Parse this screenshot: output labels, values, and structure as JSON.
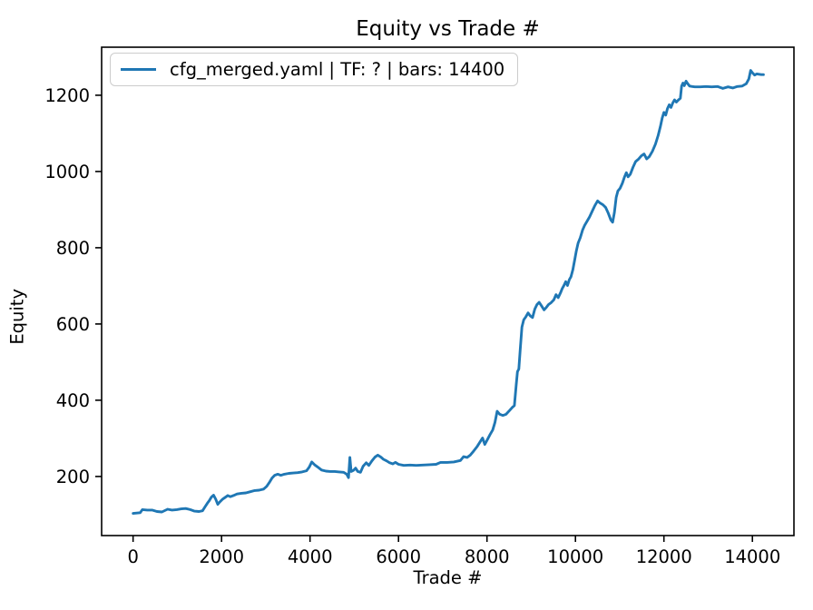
{
  "figure": {
    "title": "Equity vs Trade #"
  },
  "chart_data": {
    "type": "line",
    "title": "Equity vs Trade #",
    "xlabel": "Trade #",
    "ylabel": "Equity",
    "xlim": [
      -711,
      14939
    ],
    "ylim": [
      45,
      1326
    ],
    "xticks": [
      0,
      2000,
      4000,
      6000,
      8000,
      10000,
      12000,
      14000
    ],
    "yticks": [
      200,
      400,
      600,
      800,
      1000,
      1200
    ],
    "grid": false,
    "line_color": "#1f77b4",
    "spine_color": "#000000",
    "legend": {
      "position": "upper left",
      "entries": [
        {
          "label": "cfg_merged.yaml | TF: ? | bars: 14400",
          "color": "#1f77b4"
        }
      ]
    },
    "series": [
      {
        "name": "cfg_merged.yaml | TF: ? | bars: 14400",
        "color": "#1f77b4",
        "points": [
          [
            0,
            103
          ],
          [
            80,
            104
          ],
          [
            160,
            105
          ],
          [
            210,
            113
          ],
          [
            320,
            112
          ],
          [
            430,
            112
          ],
          [
            540,
            108
          ],
          [
            650,
            107
          ],
          [
            780,
            114
          ],
          [
            880,
            112
          ],
          [
            990,
            113
          ],
          [
            1090,
            115
          ],
          [
            1190,
            116
          ],
          [
            1290,
            113
          ],
          [
            1390,
            109
          ],
          [
            1490,
            108
          ],
          [
            1570,
            110
          ],
          [
            1630,
            121
          ],
          [
            1680,
            130
          ],
          [
            1720,
            136
          ],
          [
            1770,
            146
          ],
          [
            1820,
            151
          ],
          [
            1870,
            140
          ],
          [
            1915,
            127
          ],
          [
            1960,
            133
          ],
          [
            2020,
            140
          ],
          [
            2080,
            145
          ],
          [
            2140,
            150
          ],
          [
            2200,
            147
          ],
          [
            2270,
            150
          ],
          [
            2350,
            154
          ],
          [
            2450,
            156
          ],
          [
            2550,
            157
          ],
          [
            2650,
            160
          ],
          [
            2750,
            163
          ],
          [
            2850,
            164
          ],
          [
            2950,
            167
          ],
          [
            3020,
            174
          ],
          [
            3080,
            184
          ],
          [
            3140,
            196
          ],
          [
            3200,
            203
          ],
          [
            3270,
            206
          ],
          [
            3340,
            203
          ],
          [
            3420,
            206
          ],
          [
            3520,
            208
          ],
          [
            3620,
            209
          ],
          [
            3720,
            210
          ],
          [
            3820,
            212
          ],
          [
            3920,
            215
          ],
          [
            3980,
            224
          ],
          [
            4040,
            238
          ],
          [
            4100,
            231
          ],
          [
            4170,
            225
          ],
          [
            4260,
            217
          ],
          [
            4360,
            214
          ],
          [
            4460,
            213
          ],
          [
            4560,
            213
          ],
          [
            4660,
            212
          ],
          [
            4760,
            211
          ],
          [
            4830,
            206
          ],
          [
            4870,
            197
          ],
          [
            4900,
            250
          ],
          [
            4930,
            213
          ],
          [
            4980,
            216
          ],
          [
            5030,
            222
          ],
          [
            5080,
            213
          ],
          [
            5140,
            211
          ],
          [
            5200,
            227
          ],
          [
            5270,
            236
          ],
          [
            5330,
            229
          ],
          [
            5400,
            241
          ],
          [
            5470,
            251
          ],
          [
            5530,
            256
          ],
          [
            5600,
            251
          ],
          [
            5660,
            245
          ],
          [
            5730,
            241
          ],
          [
            5800,
            236
          ],
          [
            5870,
            233
          ],
          [
            5930,
            237
          ],
          [
            6000,
            232
          ],
          [
            6120,
            229
          ],
          [
            6260,
            230
          ],
          [
            6400,
            229
          ],
          [
            6550,
            230
          ],
          [
            6700,
            231
          ],
          [
            6850,
            232
          ],
          [
            6950,
            237
          ],
          [
            7100,
            237
          ],
          [
            7250,
            238
          ],
          [
            7400,
            242
          ],
          [
            7470,
            252
          ],
          [
            7550,
            250
          ],
          [
            7620,
            256
          ],
          [
            7700,
            267
          ],
          [
            7780,
            279
          ],
          [
            7850,
            292
          ],
          [
            7900,
            301
          ],
          [
            7950,
            284
          ],
          [
            8010,
            297
          ],
          [
            8070,
            310
          ],
          [
            8130,
            322
          ],
          [
            8180,
            342
          ],
          [
            8230,
            371
          ],
          [
            8290,
            363
          ],
          [
            8360,
            360
          ],
          [
            8430,
            363
          ],
          [
            8510,
            373
          ],
          [
            8570,
            381
          ],
          [
            8620,
            386
          ],
          [
            8660,
            440
          ],
          [
            8690,
            475
          ],
          [
            8720,
            482
          ],
          [
            8750,
            532
          ],
          [
            8790,
            592
          ],
          [
            8830,
            611
          ],
          [
            8880,
            619
          ],
          [
            8930,
            629
          ],
          [
            8980,
            621
          ],
          [
            9030,
            617
          ],
          [
            9080,
            639
          ],
          [
            9130,
            651
          ],
          [
            9180,
            657
          ],
          [
            9240,
            646
          ],
          [
            9290,
            637
          ],
          [
            9340,
            643
          ],
          [
            9390,
            651
          ],
          [
            9450,
            656
          ],
          [
            9510,
            663
          ],
          [
            9560,
            677
          ],
          [
            9610,
            669
          ],
          [
            9660,
            681
          ],
          [
            9700,
            693
          ],
          [
            9740,
            701
          ],
          [
            9780,
            711
          ],
          [
            9820,
            701
          ],
          [
            9860,
            716
          ],
          [
            9900,
            724
          ],
          [
            9940,
            742
          ],
          [
            9980,
            766
          ],
          [
            10020,
            792
          ],
          [
            10060,
            812
          ],
          [
            10110,
            827
          ],
          [
            10160,
            846
          ],
          [
            10210,
            859
          ],
          [
            10260,
            869
          ],
          [
            10320,
            881
          ],
          [
            10380,
            896
          ],
          [
            10440,
            911
          ],
          [
            10500,
            923
          ],
          [
            10560,
            917
          ],
          [
            10620,
            913
          ],
          [
            10680,
            906
          ],
          [
            10740,
            891
          ],
          [
            10800,
            873
          ],
          [
            10840,
            867
          ],
          [
            10880,
            892
          ],
          [
            10920,
            932
          ],
          [
            10960,
            949
          ],
          [
            11010,
            956
          ],
          [
            11060,
            969
          ],
          [
            11110,
            986
          ],
          [
            11150,
            997
          ],
          [
            11190,
            986
          ],
          [
            11240,
            993
          ],
          [
            11300,
            1011
          ],
          [
            11360,
            1026
          ],
          [
            11430,
            1033
          ],
          [
            11490,
            1041
          ],
          [
            11550,
            1046
          ],
          [
            11610,
            1033
          ],
          [
            11670,
            1039
          ],
          [
            11740,
            1053
          ],
          [
            11810,
            1072
          ],
          [
            11870,
            1095
          ],
          [
            11920,
            1118
          ],
          [
            11960,
            1140
          ],
          [
            12000,
            1155
          ],
          [
            12040,
            1148
          ],
          [
            12080,
            1165
          ],
          [
            12120,
            1175
          ],
          [
            12160,
            1168
          ],
          [
            12200,
            1180
          ],
          [
            12240,
            1188
          ],
          [
            12280,
            1182
          ],
          [
            12330,
            1188
          ],
          [
            12370,
            1192
          ],
          [
            12400,
            1224
          ],
          [
            12430,
            1232
          ],
          [
            12460,
            1225
          ],
          [
            12500,
            1237
          ],
          [
            12540,
            1230
          ],
          [
            12580,
            1224
          ],
          [
            12640,
            1223
          ],
          [
            12700,
            1222
          ],
          [
            12820,
            1222
          ],
          [
            12950,
            1223
          ],
          [
            13080,
            1222
          ],
          [
            13210,
            1223
          ],
          [
            13330,
            1218
          ],
          [
            13450,
            1222
          ],
          [
            13560,
            1219
          ],
          [
            13660,
            1223
          ],
          [
            13770,
            1224
          ],
          [
            13860,
            1230
          ],
          [
            13920,
            1243
          ],
          [
            13960,
            1265
          ],
          [
            14000,
            1259
          ],
          [
            14050,
            1253
          ],
          [
            14100,
            1256
          ],
          [
            14150,
            1255
          ],
          [
            14200,
            1254
          ],
          [
            14250,
            1254
          ]
        ]
      }
    ]
  }
}
